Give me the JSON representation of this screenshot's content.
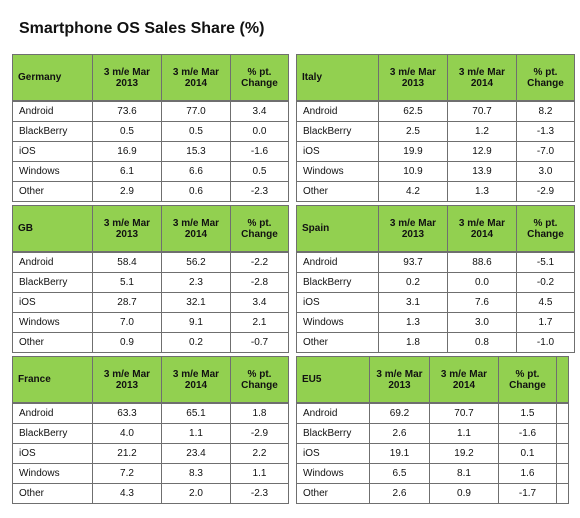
{
  "title": "Smartphone OS Sales Share (%)",
  "headers": {
    "col1": "3 m/e Mar 2013",
    "col2": "3 m/e Mar 2014",
    "col3": "% pt. Change"
  },
  "tables": [
    {
      "region": "Germany",
      "rows": [
        {
          "os": "Android",
          "v2013": "73.6",
          "v2014": "77.0",
          "change": "3.4"
        },
        {
          "os": "BlackBerry",
          "v2013": "0.5",
          "v2014": "0.5",
          "change": "0.0"
        },
        {
          "os": "iOS",
          "v2013": "16.9",
          "v2014": "15.3",
          "change": "-1.6"
        },
        {
          "os": "Windows",
          "v2013": "6.1",
          "v2014": "6.6",
          "change": "0.5"
        },
        {
          "os": "Other",
          "v2013": "2.9",
          "v2014": "0.6",
          "change": "-2.3"
        }
      ]
    },
    {
      "region": "Italy",
      "rows": [
        {
          "os": "Android",
          "v2013": "62.5",
          "v2014": "70.7",
          "change": "8.2"
        },
        {
          "os": "BlackBerry",
          "v2013": "2.5",
          "v2014": "1.2",
          "change": "-1.3"
        },
        {
          "os": "iOS",
          "v2013": "19.9",
          "v2014": "12.9",
          "change": "-7.0"
        },
        {
          "os": "Windows",
          "v2013": "10.9",
          "v2014": "13.9",
          "change": "3.0"
        },
        {
          "os": "Other",
          "v2013": "4.2",
          "v2014": "1.3",
          "change": "-2.9"
        }
      ]
    },
    {
      "region": "GB",
      "rows": [
        {
          "os": "Android",
          "v2013": "58.4",
          "v2014": "56.2",
          "change": "-2.2"
        },
        {
          "os": "BlackBerry",
          "v2013": "5.1",
          "v2014": "2.3",
          "change": "-2.8"
        },
        {
          "os": "iOS",
          "v2013": "28.7",
          "v2014": "32.1",
          "change": "3.4"
        },
        {
          "os": "Windows",
          "v2013": "7.0",
          "v2014": "9.1",
          "change": "2.1"
        },
        {
          "os": "Other",
          "v2013": "0.9",
          "v2014": "0.2",
          "change": "-0.7"
        }
      ]
    },
    {
      "region": "Spain",
      "rows": [
        {
          "os": "Android",
          "v2013": "93.7",
          "v2014": "88.6",
          "change": "-5.1"
        },
        {
          "os": "BlackBerry",
          "v2013": "0.2",
          "v2014": "0.0",
          "change": "-0.2"
        },
        {
          "os": "iOS",
          "v2013": "3.1",
          "v2014": "7.6",
          "change": "4.5"
        },
        {
          "os": "Windows",
          "v2013": "1.3",
          "v2014": "3.0",
          "change": "1.7"
        },
        {
          "os": "Other",
          "v2013": "1.8",
          "v2014": "0.8",
          "change": "-1.0"
        }
      ]
    },
    {
      "region": "France",
      "rows": [
        {
          "os": "Android",
          "v2013": "63.3",
          "v2014": "65.1",
          "change": "1.8"
        },
        {
          "os": "BlackBerry",
          "v2013": "4.0",
          "v2014": "1.1",
          "change": "-2.9"
        },
        {
          "os": "iOS",
          "v2013": "21.2",
          "v2014": "23.4",
          "change": "2.2"
        },
        {
          "os": "Windows",
          "v2013": "7.2",
          "v2014": "8.3",
          "change": "1.1"
        },
        {
          "os": "Other",
          "v2013": "4.3",
          "v2014": "2.0",
          "change": "-2.3"
        }
      ]
    },
    {
      "region": "EU5",
      "rows": [
        {
          "os": "Android",
          "v2013": "69.2",
          "v2014": "70.7",
          "change": "1.5"
        },
        {
          "os": "BlackBerry",
          "v2013": "2.6",
          "v2014": "1.1",
          "change": "-1.6"
        },
        {
          "os": "iOS",
          "v2013": "19.1",
          "v2014": "19.2",
          "change": "0.1"
        },
        {
          "os": "Windows",
          "v2013": "6.5",
          "v2014": "8.1",
          "change": "1.6"
        },
        {
          "os": "Other",
          "v2013": "2.6",
          "v2014": "0.9",
          "change": "-1.7"
        }
      ]
    }
  ],
  "chart_data": [
    {
      "type": "table",
      "title": "Germany",
      "columns": [
        "3 m/e Mar 2013",
        "3 m/e Mar 2014",
        "% pt. Change"
      ],
      "categories": [
        "Android",
        "BlackBerry",
        "iOS",
        "Windows",
        "Other"
      ],
      "series": [
        {
          "name": "3 m/e Mar 2013",
          "values": [
            73.6,
            0.5,
            16.9,
            6.1,
            2.9
          ]
        },
        {
          "name": "3 m/e Mar 2014",
          "values": [
            77.0,
            0.5,
            15.3,
            6.6,
            0.6
          ]
        },
        {
          "name": "% pt. Change",
          "values": [
            3.4,
            0.0,
            -1.6,
            0.5,
            -2.3
          ]
        }
      ]
    },
    {
      "type": "table",
      "title": "Italy",
      "columns": [
        "3 m/e Mar 2013",
        "3 m/e Mar 2014",
        "% pt. Change"
      ],
      "categories": [
        "Android",
        "BlackBerry",
        "iOS",
        "Windows",
        "Other"
      ],
      "series": [
        {
          "name": "3 m/e Mar 2013",
          "values": [
            62.5,
            2.5,
            19.9,
            10.9,
            4.2
          ]
        },
        {
          "name": "3 m/e Mar 2014",
          "values": [
            70.7,
            1.2,
            12.9,
            13.9,
            1.3
          ]
        },
        {
          "name": "% pt. Change",
          "values": [
            8.2,
            -1.3,
            -7.0,
            3.0,
            -2.9
          ]
        }
      ]
    },
    {
      "type": "table",
      "title": "GB",
      "columns": [
        "3 m/e Mar 2013",
        "3 m/e Mar 2014",
        "% pt. Change"
      ],
      "categories": [
        "Android",
        "BlackBerry",
        "iOS",
        "Windows",
        "Other"
      ],
      "series": [
        {
          "name": "3 m/e Mar 2013",
          "values": [
            58.4,
            5.1,
            28.7,
            7.0,
            0.9
          ]
        },
        {
          "name": "3 m/e Mar 2014",
          "values": [
            56.2,
            2.3,
            32.1,
            9.1,
            0.2
          ]
        },
        {
          "name": "% pt. Change",
          "values": [
            -2.2,
            -2.8,
            3.4,
            2.1,
            -0.7
          ]
        }
      ]
    },
    {
      "type": "table",
      "title": "Spain",
      "columns": [
        "3 m/e Mar 2013",
        "3 m/e Mar 2014",
        "% pt. Change"
      ],
      "categories": [
        "Android",
        "BlackBerry",
        "iOS",
        "Windows",
        "Other"
      ],
      "series": [
        {
          "name": "3 m/e Mar 2013",
          "values": [
            93.7,
            0.2,
            3.1,
            1.3,
            1.8
          ]
        },
        {
          "name": "3 m/e Mar 2014",
          "values": [
            88.6,
            0.0,
            7.6,
            3.0,
            0.8
          ]
        },
        {
          "name": "% pt. Change",
          "values": [
            -5.1,
            -0.2,
            4.5,
            1.7,
            -1.0
          ]
        }
      ]
    },
    {
      "type": "table",
      "title": "France",
      "columns": [
        "3 m/e Mar 2013",
        "3 m/e Mar 2014",
        "% pt. Change"
      ],
      "categories": [
        "Android",
        "BlackBerry",
        "iOS",
        "Windows",
        "Other"
      ],
      "series": [
        {
          "name": "3 m/e Mar 2013",
          "values": [
            63.3,
            4.0,
            21.2,
            7.2,
            4.3
          ]
        },
        {
          "name": "3 m/e Mar 2014",
          "values": [
            65.1,
            1.1,
            23.4,
            8.3,
            2.0
          ]
        },
        {
          "name": "% pt. Change",
          "values": [
            1.8,
            -2.9,
            2.2,
            1.1,
            -2.3
          ]
        }
      ]
    },
    {
      "type": "table",
      "title": "EU5",
      "columns": [
        "3 m/e Mar 2013",
        "3 m/e Mar 2014",
        "% pt. Change"
      ],
      "categories": [
        "Android",
        "BlackBerry",
        "iOS",
        "Windows",
        "Other"
      ],
      "series": [
        {
          "name": "3 m/e Mar 2013",
          "values": [
            69.2,
            2.6,
            19.1,
            6.5,
            2.6
          ]
        },
        {
          "name": "3 m/e Mar 2014",
          "values": [
            70.7,
            1.1,
            19.2,
            8.1,
            0.9
          ]
        },
        {
          "name": "% pt. Change",
          "values": [
            1.5,
            -1.6,
            0.1,
            1.6,
            -1.7
          ]
        }
      ]
    }
  ]
}
